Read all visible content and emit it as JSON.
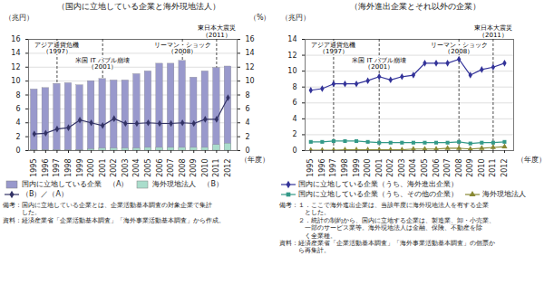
{
  "chart_data": [
    {
      "type": "bar",
      "title": "（国内に立地している企業と海外現地法人）",
      "x": [
        1995,
        1996,
        1997,
        1998,
        1999,
        2000,
        2001,
        2002,
        2003,
        2004,
        2005,
        2006,
        2007,
        2008,
        2009,
        2010,
        2011,
        2012
      ],
      "xlim": [
        1994.5,
        2012.8
      ],
      "xticks": [
        1995,
        1996,
        1997,
        1998,
        1999,
        2000,
        2001,
        2002,
        2003,
        2004,
        2005,
        2006,
        2007,
        2008,
        2009,
        2010,
        2011,
        2012
      ],
      "xlabel": "（年度）",
      "ylabel": "（兆円）",
      "y2label": "（%）",
      "ylim": [
        0,
        16
      ],
      "yticks": [
        0,
        2,
        4,
        6,
        8,
        10,
        12,
        14,
        16
      ],
      "y2lim": [
        0,
        16
      ],
      "y2ticks": [
        0,
        2,
        4,
        6,
        8,
        10,
        12,
        14,
        16
      ],
      "grid": true,
      "legend": "bottom",
      "series": [
        {
          "name": "国内に立地している企業　（A）",
          "type": "bar",
          "color": "#9999cc",
          "values": [
            8.8,
            9.0,
            9.6,
            9.7,
            9.4,
            10.0,
            10.3,
            10.1,
            10.1,
            11.0,
            11.4,
            12.5,
            12.5,
            12.9,
            10.5,
            11.4,
            11.9,
            12.1
          ]
        },
        {
          "name": "海外現地法人　（B）",
          "type": "bar",
          "color": "#aaddcc",
          "values": [
            0.05,
            0.05,
            0.05,
            0.05,
            0.05,
            0.2,
            0.3,
            0.3,
            0.3,
            0.3,
            0.4,
            0.4,
            0.4,
            0.4,
            0.4,
            0.4,
            0.8,
            1.0
          ]
        },
        {
          "name": "（B）／（A）",
          "type": "line",
          "axis": "y2",
          "color": "#333366",
          "marker": "diamond",
          "values": [
            2.4,
            2.5,
            3.1,
            3.3,
            4.4,
            4.0,
            3.6,
            4.6,
            3.9,
            3.9,
            4.0,
            3.9,
            3.9,
            4.0,
            3.9,
            4.5,
            4.5,
            7.6
          ]
        }
      ],
      "annotations": [
        {
          "x": 1997,
          "text": "アジア通貨危機\n（1997）"
        },
        {
          "x": 2001,
          "text": "米国 IT バブル崩壊\n（2001）"
        },
        {
          "x": 2008,
          "text": "リーマン・ショック\n（2008）"
        },
        {
          "x": 2011,
          "text": "東日本大震災\n（2011）"
        }
      ],
      "notes": [
        "備考：国内に立地している企業とは、企業活動基本調査の対象企業で集計",
        "　　　した。",
        "資料：経済産業省「企業活動基本調査」「海外事業活動基本調査」から作成。"
      ]
    },
    {
      "type": "line",
      "title": "（海外進出企業とそれ以外の企業）",
      "x": [
        1995,
        1996,
        1997,
        1998,
        1999,
        2000,
        2001,
        2002,
        2003,
        2004,
        2005,
        2006,
        2007,
        2008,
        2009,
        2010,
        2011,
        2012
      ],
      "xlim": [
        1994.5,
        2012.8
      ],
      "xticks": [
        1995,
        1996,
        1997,
        1998,
        1999,
        2000,
        2001,
        2002,
        2003,
        2004,
        2005,
        2006,
        2007,
        2008,
        2009,
        2010,
        2011,
        2012
      ],
      "xlabel": "（年度）",
      "ylabel": "（兆円）",
      "ylim": [
        0,
        14
      ],
      "yticks": [
        0,
        2,
        4,
        6,
        8,
        10,
        12,
        14
      ],
      "grid": true,
      "legend": "bottom",
      "series": [
        {
          "name": "国内に立地している企業（うち、海外進出企業）",
          "type": "line",
          "color": "#333399",
          "marker": "diamond",
          "values": [
            7.6,
            7.8,
            8.4,
            8.4,
            8.4,
            8.8,
            9.3,
            8.9,
            9.3,
            9.5,
            11.0,
            11.0,
            11.0,
            11.5,
            9.5,
            10.2,
            10.5,
            11.0
          ]
        },
        {
          "name": "国内に立地している企業（うち、その他の企業）",
          "type": "line",
          "color": "#339988",
          "marker": "square",
          "values": [
            1.1,
            1.1,
            1.2,
            1.2,
            1.2,
            1.1,
            1.0,
            1.0,
            1.0,
            1.0,
            1.0,
            1.0,
            1.0,
            1.1,
            0.9,
            1.0,
            1.0,
            1.1
          ]
        },
        {
          "name": "海外現地法人",
          "type": "line",
          "color": "#888833",
          "marker": "triangle",
          "values": [
            0.05,
            0.05,
            0.05,
            0.1,
            0.1,
            0.1,
            0.1,
            0.1,
            0.1,
            0.2,
            0.2,
            0.2,
            0.3,
            0.3,
            0.2,
            0.3,
            0.4,
            0.5
          ]
        }
      ],
      "annotations": [
        {
          "x": 1997,
          "text": "アジア通貨危機\n（1997）"
        },
        {
          "x": 2001,
          "text": "米国 IT バブル崩壊\n（2001）"
        },
        {
          "x": 2008,
          "text": "リーマン・ショック\n（2008）"
        },
        {
          "x": 2011,
          "text": "東日本大震災\n（2011）"
        }
      ],
      "notes": [
        "備考：１．ここで海外進出企業は、当該年度に海外現地法人を有する企業",
        "　　　　とした。",
        "　　　２．統計の制約から、国内に立地する企業は、製造業、卸・小売業、",
        "　　　　一部のサービス業等。海外現地法人は金融、保険、不動産を除",
        "　　　　く全業種。",
        "資料：経済産業省「企業活動基本調査」「海外事業活動基本調査」の個票か",
        "　　　ら再集計。"
      ]
    }
  ]
}
